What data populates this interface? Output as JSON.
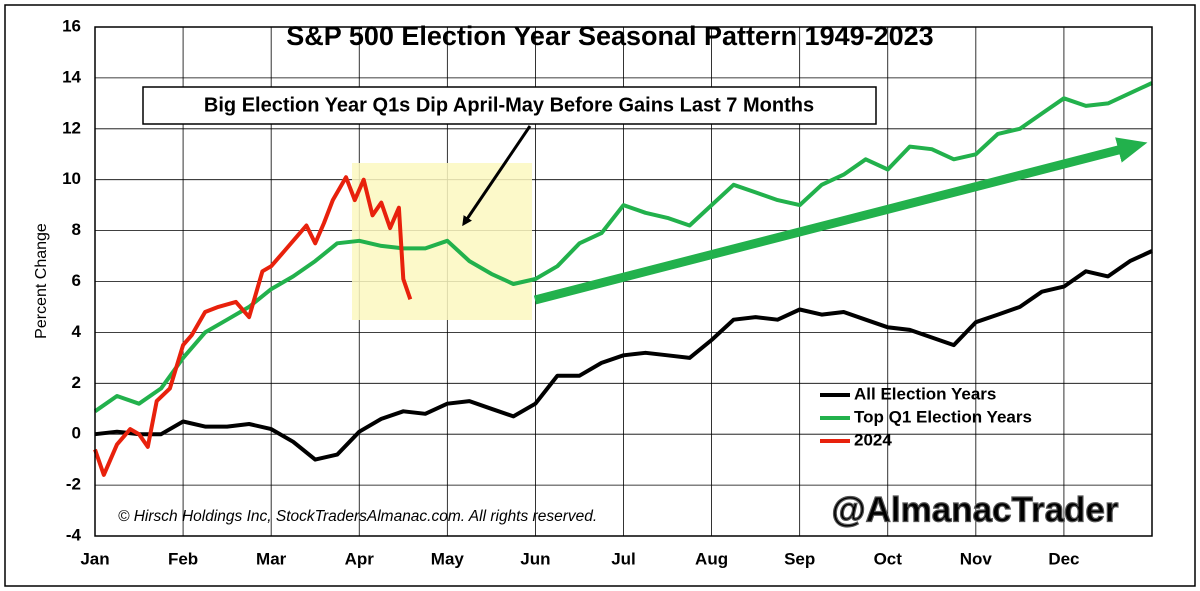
{
  "chart_data": {
    "type": "line",
    "title": "S&P 500 Election Year Seasonal Pattern 1949-2023",
    "ylabel": "Percent Change",
    "annotations": [
      "Big Election Year Q1s Dip April-May Before Gains Last 7 Months",
      "© Hirsch Holdings Inc, StockTradersAlmanac.com. All rights reserved.",
      "@AlmanacTrader"
    ],
    "xlim": [
      0,
      12
    ],
    "xticks": [
      {
        "value": 0,
        "label": "Jan"
      },
      {
        "value": 1,
        "label": "Feb"
      },
      {
        "value": 2,
        "label": "Mar"
      },
      {
        "value": 3,
        "label": "Apr"
      },
      {
        "value": 4,
        "label": "May"
      },
      {
        "value": 5,
        "label": "Jun"
      },
      {
        "value": 6,
        "label": "Jul"
      },
      {
        "value": 7,
        "label": "Aug"
      },
      {
        "value": 8,
        "label": "Sep"
      },
      {
        "value": 9,
        "label": "Oct"
      },
      {
        "value": 10,
        "label": "Nov"
      },
      {
        "value": 11,
        "label": "Dec"
      }
    ],
    "ylim": [
      -4,
      16
    ],
    "yticks": [
      -4,
      -2,
      0,
      2,
      4,
      6,
      8,
      10,
      12,
      14,
      16
    ],
    "grid": true,
    "legend": "lower right",
    "series": [
      {
        "name": "All Election Years",
        "color": "#000000",
        "x": [
          0,
          0.25,
          0.5,
          0.75,
          1,
          1.25,
          1.5,
          1.75,
          2,
          2.25,
          2.5,
          2.75,
          3,
          3.25,
          3.5,
          3.75,
          4,
          4.25,
          4.5,
          4.75,
          5,
          5.25,
          5.5,
          5.75,
          6,
          6.25,
          6.5,
          6.75,
          7,
          7.25,
          7.5,
          7.75,
          8,
          8.25,
          8.5,
          8.75,
          9,
          9.25,
          9.5,
          9.75,
          10,
          10.25,
          10.5,
          10.75,
          11,
          11.25,
          11.5,
          11.75,
          12
        ],
        "values": [
          0.0,
          0.1,
          0.0,
          0.0,
          0.5,
          0.3,
          0.3,
          0.4,
          0.2,
          -0.3,
          -1.0,
          -0.8,
          0.1,
          0.6,
          0.9,
          0.8,
          1.2,
          1.3,
          1.0,
          0.7,
          1.2,
          2.3,
          2.3,
          2.8,
          3.1,
          3.2,
          3.1,
          3.0,
          3.7,
          4.5,
          4.6,
          4.5,
          4.9,
          4.7,
          4.8,
          4.5,
          4.2,
          4.1,
          3.8,
          3.5,
          4.4,
          4.7,
          5.0,
          5.6,
          5.8,
          6.4,
          6.2,
          6.8,
          7.2
        ]
      },
      {
        "name": "Top Q1 Election Years",
        "color": "#22b14c",
        "x": [
          0,
          0.25,
          0.5,
          0.75,
          1,
          1.25,
          1.5,
          1.75,
          2,
          2.25,
          2.5,
          2.75,
          3,
          3.25,
          3.5,
          3.75,
          4,
          4.25,
          4.5,
          4.75,
          5,
          5.25,
          5.5,
          5.75,
          6,
          6.25,
          6.5,
          6.75,
          7,
          7.25,
          7.5,
          7.75,
          8,
          8.25,
          8.5,
          8.75,
          9,
          9.25,
          9.5,
          9.75,
          10,
          10.25,
          10.5,
          10.75,
          11,
          11.25,
          11.5,
          11.75,
          12
        ],
        "values": [
          0.9,
          1.5,
          1.2,
          1.8,
          3.0,
          4.0,
          4.5,
          5.0,
          5.7,
          6.2,
          6.8,
          7.5,
          7.6,
          7.4,
          7.3,
          7.3,
          7.6,
          6.8,
          6.3,
          5.9,
          6.1,
          6.6,
          7.5,
          7.9,
          9.0,
          8.7,
          8.5,
          8.2,
          9.0,
          9.8,
          9.5,
          9.2,
          9.0,
          9.8,
          10.2,
          10.8,
          10.4,
          11.3,
          11.2,
          10.8,
          11.0,
          11.8,
          12.0,
          12.6,
          13.2,
          12.9,
          13.0,
          13.4,
          13.8
        ]
      },
      {
        "name": "2024",
        "color": "#e8210c",
        "x": [
          0,
          0.1,
          0.25,
          0.4,
          0.5,
          0.6,
          0.7,
          0.85,
          1,
          1.1,
          1.25,
          1.4,
          1.6,
          1.75,
          1.9,
          2,
          2.15,
          2.3,
          2.4,
          2.5,
          2.6,
          2.7,
          2.85,
          2.95,
          3.05,
          3.15,
          3.25,
          3.35,
          3.45,
          3.5,
          3.58
        ],
        "values": [
          -0.6,
          -1.6,
          -0.4,
          0.2,
          0.0,
          -0.5,
          1.3,
          1.8,
          3.5,
          3.9,
          4.8,
          5.0,
          5.2,
          4.6,
          6.4,
          6.6,
          7.2,
          7.8,
          8.2,
          7.5,
          8.3,
          9.2,
          10.1,
          9.2,
          10.0,
          8.6,
          9.1,
          8.1,
          8.9,
          6.1,
          5.3
        ]
      }
    ]
  }
}
